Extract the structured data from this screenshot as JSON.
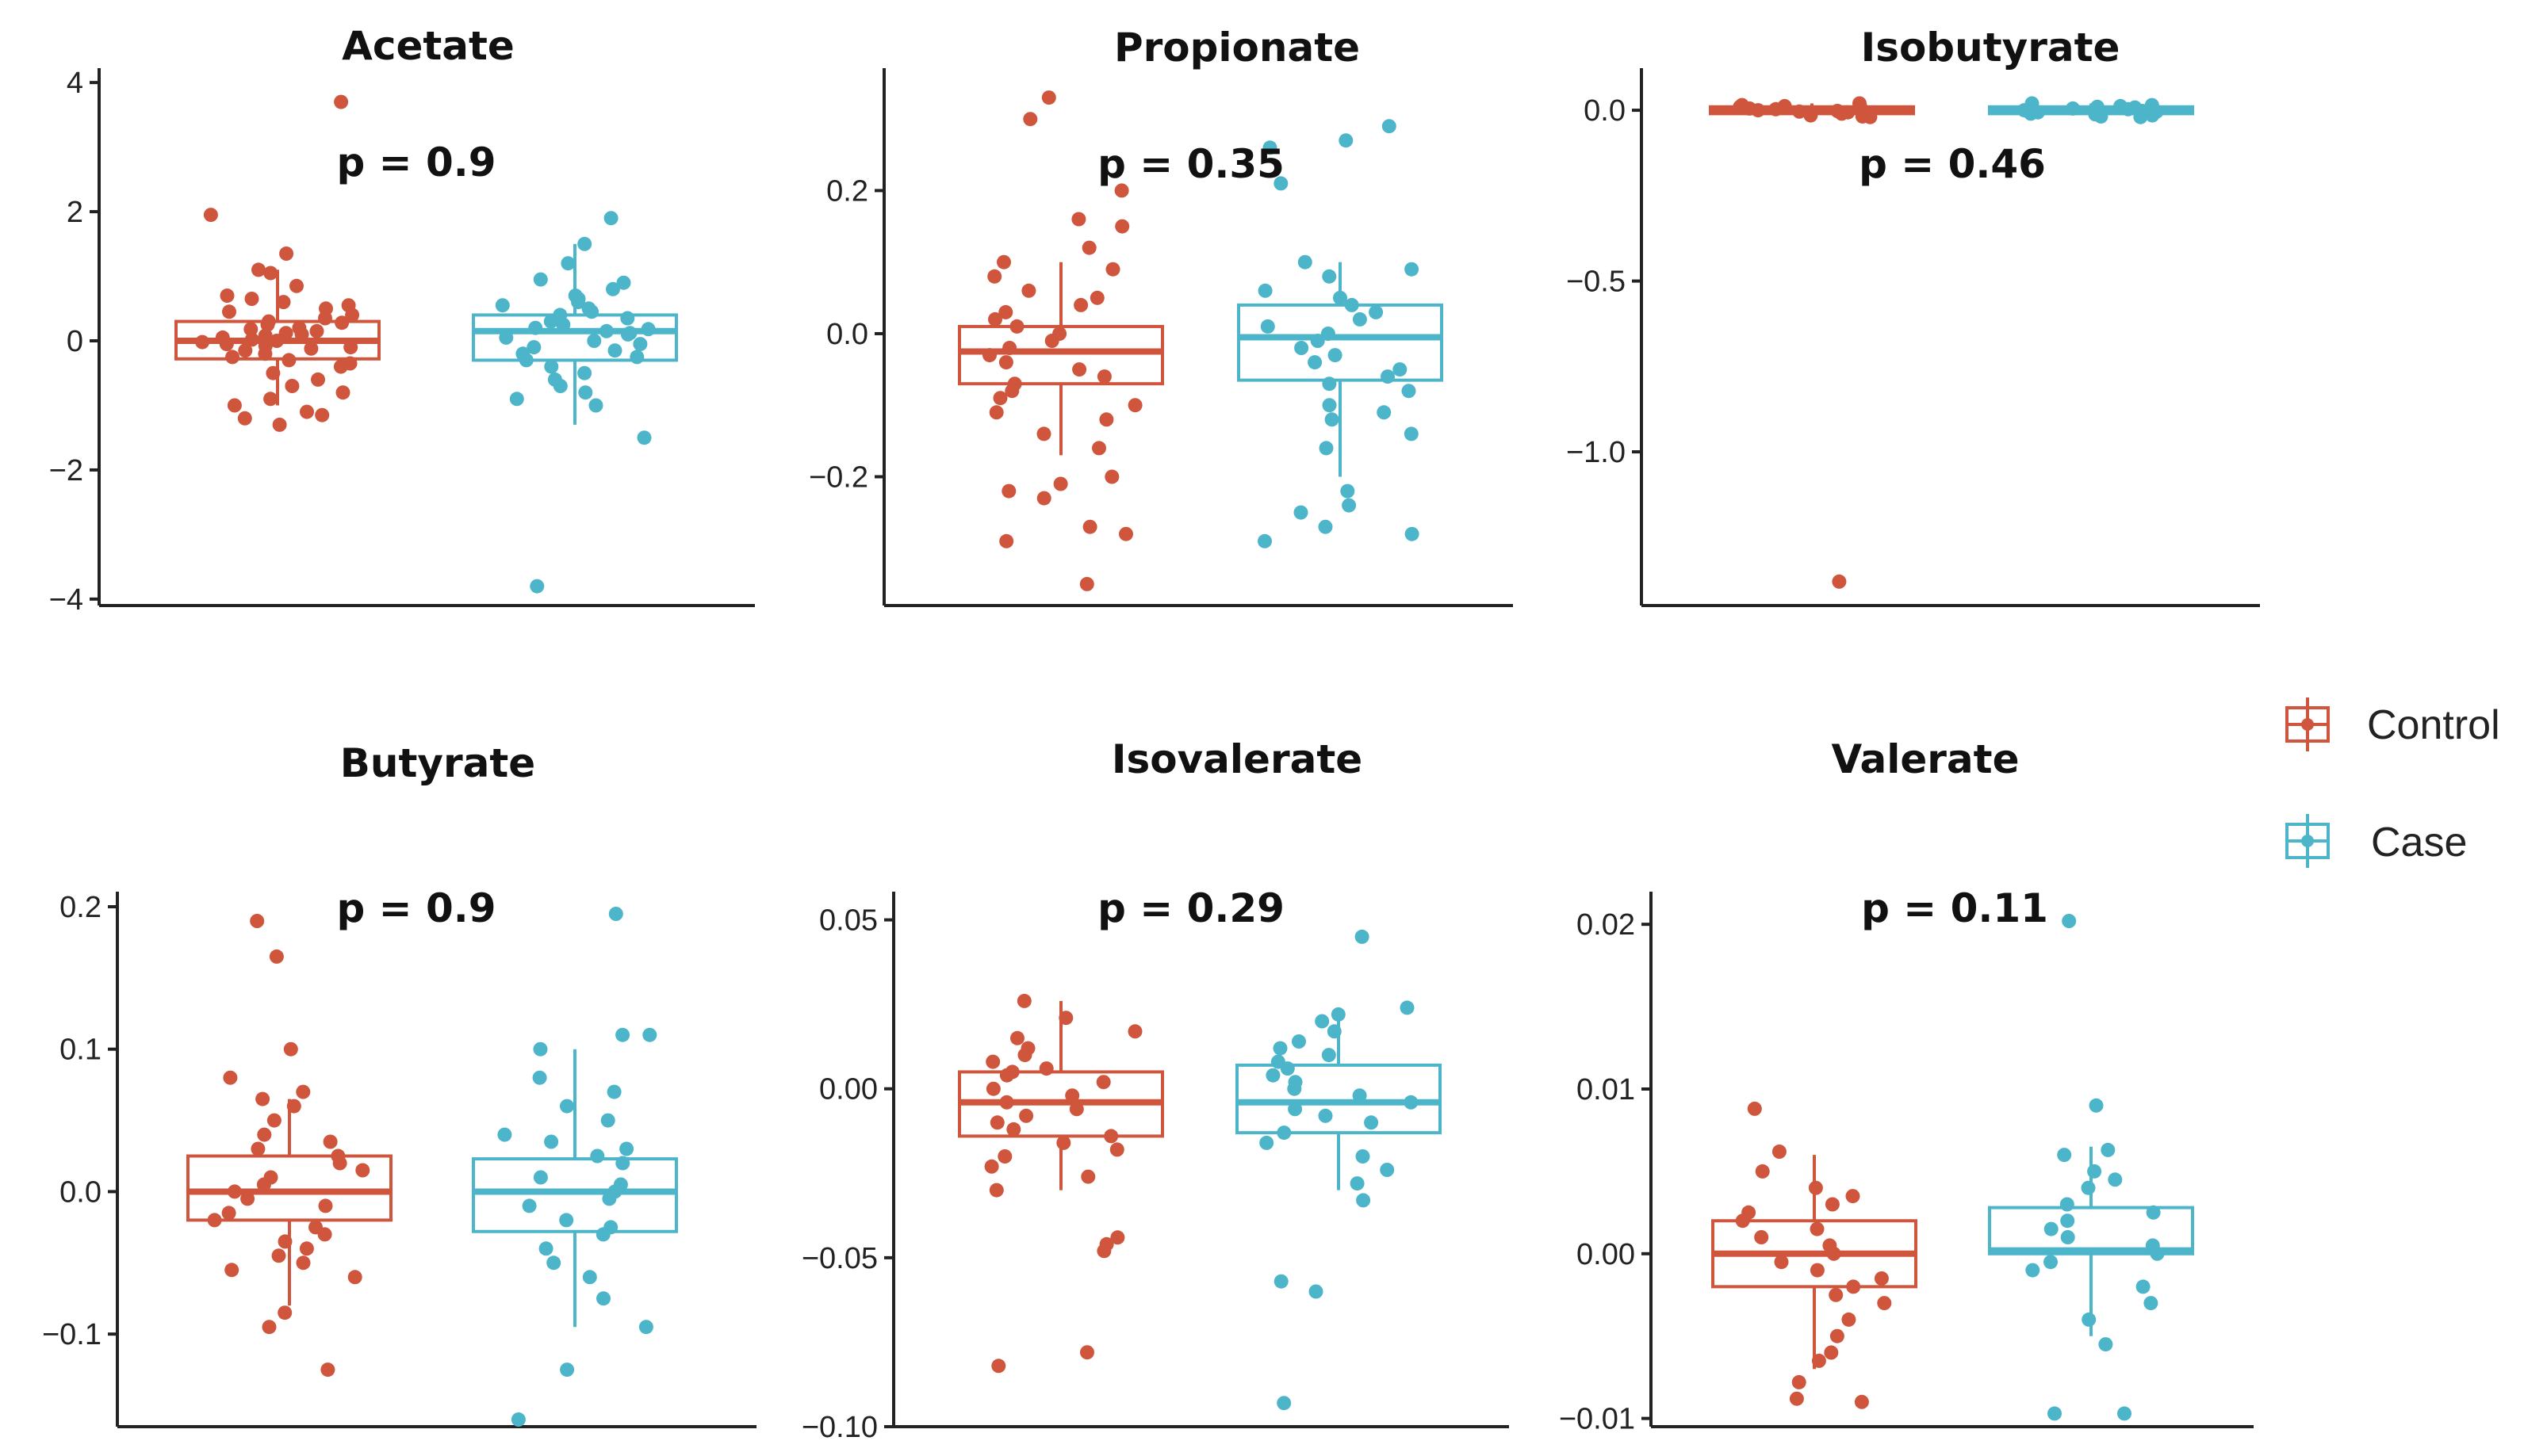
{
  "legend": {
    "items": [
      {
        "label": "Control",
        "color": "#D0553D"
      },
      {
        "label": "Case",
        "color": "#4DB5C9"
      }
    ]
  },
  "chart_data": [
    {
      "type": "box",
      "title": "Acetate",
      "annotation": "p = 0.9",
      "ylim": [
        -4.1,
        4.1
      ],
      "yticks": [
        4,
        2,
        0,
        -2,
        -4
      ],
      "ytick_labels": [
        "4",
        "2",
        "0",
        "−2",
        "−4"
      ],
      "series": [
        {
          "name": "Control",
          "color": "#D0553D",
          "box": {
            "q1": -0.28,
            "median": 0.0,
            "q3": 0.3,
            "whisker_low": -1.0,
            "whisker_high": 1.1
          },
          "points": [
            3.7,
            1.95,
            1.35,
            1.1,
            1.05,
            0.85,
            0.7,
            0.65,
            0.6,
            0.55,
            0.5,
            0.45,
            0.4,
            0.35,
            0.3,
            0.28,
            0.25,
            0.2,
            0.18,
            0.15,
            0.12,
            0.1,
            0.08,
            0.05,
            0.02,
            0.0,
            -0.02,
            -0.05,
            -0.08,
            -0.1,
            -0.12,
            -0.15,
            -0.2,
            -0.25,
            -0.3,
            -0.35,
            -0.4,
            -0.5,
            -0.6,
            -0.7,
            -0.8,
            -0.9,
            -1.0,
            -1.1,
            -1.15,
            -1.2,
            -1.3
          ]
        },
        {
          "name": "Case",
          "color": "#4DB5C9",
          "box": {
            "q1": -0.3,
            "median": 0.15,
            "q3": 0.4,
            "whisker_low": -1.3,
            "whisker_high": 1.5
          },
          "points": [
            1.9,
            1.5,
            1.2,
            0.95,
            0.9,
            0.8,
            0.7,
            0.65,
            0.6,
            0.55,
            0.5,
            0.45,
            0.4,
            0.35,
            0.3,
            0.25,
            0.2,
            0.18,
            0.15,
            0.12,
            0.1,
            0.05,
            0.0,
            -0.05,
            -0.1,
            -0.15,
            -0.2,
            -0.25,
            -0.3,
            -0.4,
            -0.5,
            -0.6,
            -0.7,
            -0.8,
            -0.9,
            -1.0,
            -1.5,
            -3.8
          ]
        }
      ]
    },
    {
      "type": "box",
      "title": "Propionate",
      "annotation": "p = 0.35",
      "ylim": [
        -0.38,
        0.36
      ],
      "yticks": [
        0.2,
        0.0,
        -0.2
      ],
      "ytick_labels": [
        "0.2",
        "0.0",
        "−0.2"
      ],
      "series": [
        {
          "name": "Control",
          "color": "#D0553D",
          "box": {
            "q1": -0.07,
            "median": -0.025,
            "q3": 0.01,
            "whisker_low": -0.17,
            "whisker_high": 0.1
          },
          "points": [
            0.33,
            0.3,
            0.2,
            0.16,
            0.15,
            0.12,
            0.1,
            0.09,
            0.08,
            0.06,
            0.05,
            0.04,
            0.03,
            0.02,
            0.01,
            0.0,
            -0.01,
            -0.02,
            -0.03,
            -0.04,
            -0.05,
            -0.06,
            -0.07,
            -0.08,
            -0.09,
            -0.1,
            -0.11,
            -0.12,
            -0.14,
            -0.16,
            -0.2,
            -0.21,
            -0.22,
            -0.23,
            -0.27,
            -0.28,
            -0.29,
            -0.35
          ]
        },
        {
          "name": "Case",
          "color": "#4DB5C9",
          "box": {
            "q1": -0.065,
            "median": -0.005,
            "q3": 0.04,
            "whisker_low": -0.2,
            "whisker_high": 0.1
          },
          "points": [
            0.29,
            0.27,
            0.26,
            0.21,
            0.1,
            0.09,
            0.08,
            0.06,
            0.05,
            0.04,
            0.03,
            0.02,
            0.01,
            0.0,
            -0.01,
            -0.02,
            -0.03,
            -0.04,
            -0.05,
            -0.06,
            -0.07,
            -0.08,
            -0.1,
            -0.11,
            -0.12,
            -0.14,
            -0.16,
            -0.22,
            -0.24,
            -0.25,
            -0.27,
            -0.28,
            -0.29
          ]
        }
      ]
    },
    {
      "type": "box",
      "title": "Isobutyrate",
      "annotation": "p = 0.46",
      "ylim": [
        -1.45,
        0.1
      ],
      "yticks": [
        0.0,
        -0.5,
        -1.0
      ],
      "ytick_labels": [
        "0.0",
        "−0.5",
        "−1.0"
      ],
      "series": [
        {
          "name": "Control",
          "color": "#D0553D",
          "box": {
            "q1": -0.01,
            "median": 0.0,
            "q3": 0.01,
            "whisker_low": -0.02,
            "whisker_high": 0.02
          },
          "points": [
            0.02,
            0.015,
            0.01,
            0.008,
            0.005,
            0.003,
            0.0,
            -0.002,
            -0.004,
            -0.006,
            -0.008,
            -0.01,
            -0.012,
            -0.015,
            -0.018,
            0.012,
            -0.02,
            -1.38
          ]
        },
        {
          "name": "Case",
          "color": "#4DB5C9",
          "box": {
            "q1": -0.01,
            "median": 0.0,
            "q3": 0.01,
            "whisker_low": -0.02,
            "whisker_high": 0.02
          },
          "points": [
            0.02,
            0.015,
            0.01,
            0.008,
            0.005,
            0.003,
            0.0,
            -0.002,
            -0.004,
            -0.006,
            -0.008,
            -0.01,
            -0.012,
            -0.015,
            -0.018,
            0.012,
            -0.02
          ]
        }
      ]
    },
    {
      "type": "box",
      "title": "Butyrate",
      "annotation": "p = 0.9",
      "ylim": [
        -0.165,
        0.205
      ],
      "yticks": [
        0.2,
        0.1,
        0.0,
        -0.1
      ],
      "ytick_labels": [
        "0.2",
        "0.1",
        "0.0",
        "−0.1"
      ],
      "series": [
        {
          "name": "Control",
          "color": "#D0553D",
          "box": {
            "q1": -0.02,
            "median": 0.0,
            "q3": 0.025,
            "whisker_low": -0.08,
            "whisker_high": 0.065
          },
          "points": [
            0.19,
            0.165,
            0.1,
            0.08,
            0.07,
            0.065,
            0.06,
            0.05,
            0.04,
            0.035,
            0.03,
            0.025,
            0.02,
            0.015,
            0.01,
            0.005,
            0.0,
            -0.005,
            -0.01,
            -0.015,
            -0.02,
            -0.025,
            -0.03,
            -0.035,
            -0.04,
            -0.045,
            -0.05,
            -0.055,
            -0.06,
            -0.085,
            -0.095,
            -0.125
          ]
        },
        {
          "name": "Case",
          "color": "#4DB5C9",
          "box": {
            "q1": -0.028,
            "median": 0.0,
            "q3": 0.023,
            "whisker_low": -0.095,
            "whisker_high": 0.1
          },
          "points": [
            0.195,
            0.11,
            0.11,
            0.1,
            0.08,
            0.07,
            0.06,
            0.05,
            0.04,
            0.035,
            0.03,
            0.025,
            0.02,
            0.01,
            0.005,
            0.0,
            -0.005,
            -0.01,
            -0.02,
            -0.025,
            -0.03,
            -0.04,
            -0.05,
            -0.06,
            -0.075,
            -0.095,
            -0.125,
            -0.16
          ]
        }
      ]
    },
    {
      "type": "box",
      "title": "Isovalerate",
      "annotation": "p = 0.29",
      "ylim": [
        -0.1,
        0.056
      ],
      "yticks": [
        0.05,
        0.0,
        -0.05,
        -0.1
      ],
      "ytick_labels": [
        "0.05",
        "0.00",
        "−0.05",
        "−0.10"
      ],
      "series": [
        {
          "name": "Control",
          "color": "#D0553D",
          "box": {
            "q1": -0.014,
            "median": -0.004,
            "q3": 0.005,
            "whisker_low": -0.03,
            "whisker_high": 0.026
          },
          "points": [
            0.026,
            0.021,
            0.017,
            0.015,
            0.012,
            0.01,
            0.008,
            0.006,
            0.005,
            0.004,
            0.002,
            0.0,
            -0.002,
            -0.004,
            -0.006,
            -0.008,
            -0.01,
            -0.012,
            -0.014,
            -0.016,
            -0.018,
            -0.02,
            -0.023,
            -0.026,
            -0.03,
            -0.044,
            -0.046,
            -0.048,
            -0.078,
            -0.082
          ]
        },
        {
          "name": "Case",
          "color": "#4DB5C9",
          "box": {
            "q1": -0.013,
            "median": -0.004,
            "q3": 0.007,
            "whisker_low": -0.03,
            "whisker_high": 0.024
          },
          "points": [
            0.045,
            0.024,
            0.022,
            0.02,
            0.017,
            0.014,
            0.012,
            0.01,
            0.008,
            0.006,
            0.004,
            0.002,
            0.0,
            -0.002,
            -0.004,
            -0.006,
            -0.008,
            -0.01,
            -0.013,
            -0.016,
            -0.02,
            -0.024,
            -0.028,
            -0.033,
            -0.057,
            -0.06,
            -0.093
          ]
        }
      ]
    },
    {
      "type": "box",
      "title": "Valerate",
      "annotation": "p = 0.11",
      "ylim": [
        -0.0105,
        0.0215
      ],
      "yticks": [
        0.02,
        0.01,
        0.0,
        -0.01
      ],
      "ytick_labels": [
        "0.02",
        "0.01",
        "0.00",
        "−0.01"
      ],
      "series": [
        {
          "name": "Control",
          "color": "#D0553D",
          "box": {
            "q1": -0.002,
            "median": 0.0,
            "q3": 0.002,
            "whisker_low": -0.007,
            "whisker_high": 0.006
          },
          "points": [
            0.0088,
            0.0062,
            0.005,
            0.004,
            0.0035,
            0.003,
            0.0025,
            0.002,
            0.0015,
            0.001,
            0.0005,
            0.0,
            -0.0005,
            -0.001,
            -0.0015,
            -0.002,
            -0.0025,
            -0.003,
            -0.004,
            -0.005,
            -0.006,
            -0.0065,
            -0.0078,
            -0.0088,
            -0.009
          ]
        },
        {
          "name": "Case",
          "color": "#4DB5C9",
          "box": {
            "q1": 0.0,
            "median": 0.0002,
            "q3": 0.0028,
            "whisker_low": -0.005,
            "whisker_high": 0.0065
          },
          "points": [
            0.0202,
            0.009,
            0.0063,
            0.006,
            0.005,
            0.0045,
            0.004,
            0.003,
            0.0025,
            0.002,
            0.0015,
            0.001,
            0.0005,
            0.0,
            -0.0005,
            -0.001,
            -0.002,
            -0.003,
            -0.004,
            -0.0055,
            -0.0097,
            -0.0097
          ]
        }
      ]
    }
  ]
}
